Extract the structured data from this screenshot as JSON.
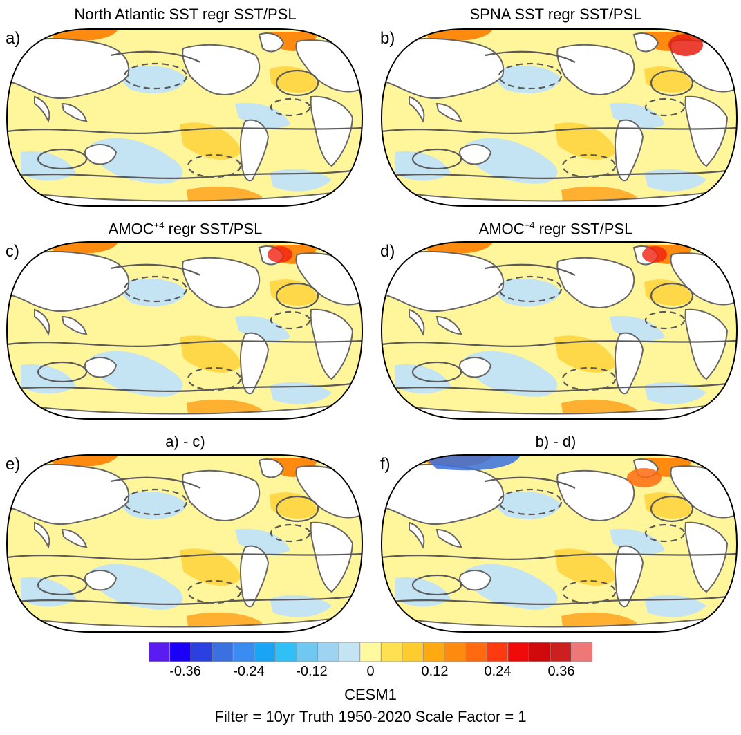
{
  "panels": [
    {
      "letter": "a)",
      "title_pre": "North Atlantic SST regr SST/PSL",
      "title_sup": "",
      "title_post": ""
    },
    {
      "letter": "b)",
      "title_pre": "SPNA SST regr SST/PSL",
      "title_sup": "",
      "title_post": ""
    },
    {
      "letter": "c)",
      "title_pre": "AMOC",
      "title_sup": "+4",
      "title_post": " regr SST/PSL"
    },
    {
      "letter": "d)",
      "title_pre": "AMOC",
      "title_sup": "+4",
      "title_post": " regr SST/PSL"
    },
    {
      "letter": "e)",
      "title_pre": "a) - c)",
      "title_sup": "",
      "title_post": ""
    },
    {
      "letter": "f)",
      "title_pre": "b) - d)",
      "title_sup": "",
      "title_post": ""
    }
  ],
  "colorbar": {
    "colors": [
      "#5a1cf0",
      "#1a00f5",
      "#2a40e0",
      "#3a70e0",
      "#3a8cf0",
      "#1aa4f5",
      "#30c0f5",
      "#70c8f0",
      "#9ed4f2",
      "#c4e4f4",
      "#fffaa0",
      "#ffe050",
      "#ffcc30",
      "#ffaa10",
      "#ff8a10",
      "#ff6a10",
      "#ff3a10",
      "#f00a0a",
      "#d00a0a",
      "#cc2020",
      "#ee7777"
    ],
    "tick_labels": [
      "-0.36",
      "-0.24",
      "-0.12",
      "0",
      "0.12",
      "0.24",
      "0.36"
    ]
  },
  "footer": {
    "model": "CESM1",
    "info": "Filter = 10yr   Truth 1950-2020   Scale Factor = 1"
  },
  "colors": {
    "ocean_warm": "#fff59a",
    "ocean_cool": "#c4e4f4",
    "land": "#ffffff",
    "coast": "#666666",
    "contour": "#5a5a5a"
  }
}
